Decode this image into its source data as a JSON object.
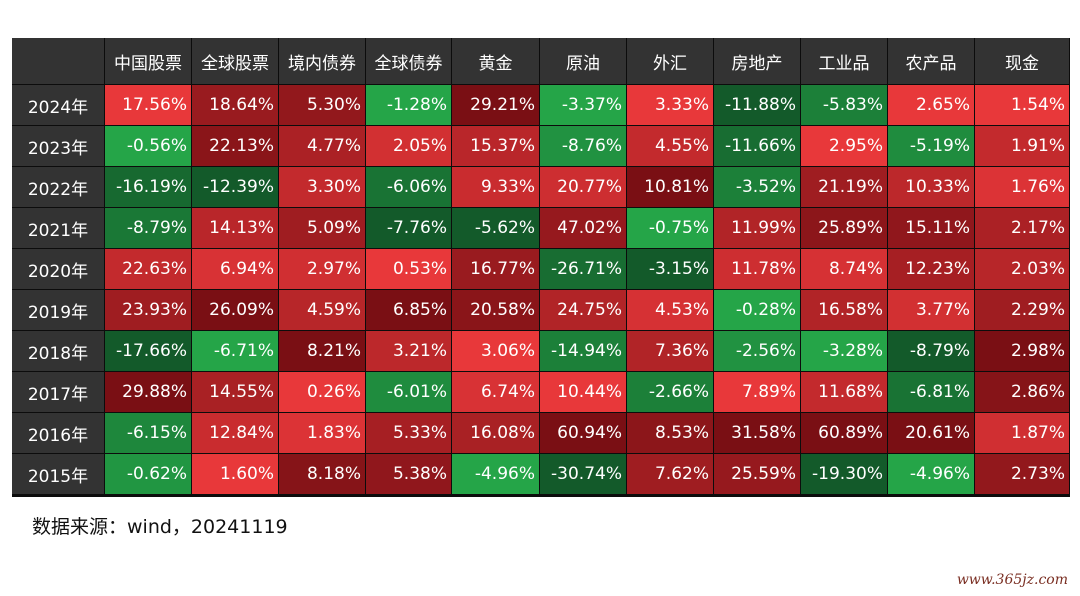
{
  "chart_data": {
    "type": "heatmap",
    "columns": [
      "中国股票",
      "全球股票",
      "境内债券",
      "全球债券",
      "黄金",
      "原油",
      "外汇",
      "房地产",
      "工业品",
      "农产品",
      "现金"
    ],
    "rows": [
      {
        "year": "2024年",
        "values": [
          "17.56%",
          "18.64%",
          "5.30%",
          "-1.28%",
          "29.21%",
          "-3.37%",
          "3.33%",
          "-11.88%",
          "-5.83%",
          "2.65%",
          "1.54%"
        ]
      },
      {
        "year": "2023年",
        "values": [
          "-0.56%",
          "22.13%",
          "4.77%",
          "2.05%",
          "15.37%",
          "-8.76%",
          "4.55%",
          "-11.66%",
          "2.95%",
          "-5.19%",
          "1.91%"
        ]
      },
      {
        "year": "2022年",
        "values": [
          "-16.19%",
          "-12.39%",
          "3.30%",
          "-6.06%",
          "9.33%",
          "20.77%",
          "10.81%",
          "-3.52%",
          "21.19%",
          "10.33%",
          "1.76%"
        ]
      },
      {
        "year": "2021年",
        "values": [
          "-8.79%",
          "14.13%",
          "5.09%",
          "-7.76%",
          "-5.62%",
          "47.02%",
          "-0.75%",
          "11.99%",
          "25.89%",
          "15.11%",
          "2.17%"
        ]
      },
      {
        "year": "2020年",
        "values": [
          "22.63%",
          "6.94%",
          "2.97%",
          "0.53%",
          "16.77%",
          "-26.71%",
          "-3.15%",
          "11.78%",
          "8.74%",
          "12.23%",
          "2.03%"
        ]
      },
      {
        "year": "2019年",
        "values": [
          "23.93%",
          "26.09%",
          "4.59%",
          "6.85%",
          "20.58%",
          "24.75%",
          "4.53%",
          "-0.28%",
          "16.58%",
          "3.77%",
          "2.29%"
        ]
      },
      {
        "year": "2018年",
        "values": [
          "-17.66%",
          "-6.71%",
          "8.21%",
          "3.21%",
          "3.06%",
          "-14.94%",
          "7.36%",
          "-2.56%",
          "-3.28%",
          "-8.79%",
          "2.98%"
        ]
      },
      {
        "year": "2017年",
        "values": [
          "29.88%",
          "14.55%",
          "0.26%",
          "-6.01%",
          "6.74%",
          "10.44%",
          "-2.66%",
          "7.89%",
          "11.68%",
          "-6.81%",
          "2.86%"
        ]
      },
      {
        "year": "2016年",
        "values": [
          "-6.15%",
          "12.84%",
          "1.83%",
          "5.33%",
          "16.08%",
          "60.94%",
          "8.53%",
          "31.58%",
          "60.89%",
          "20.61%",
          "1.87%"
        ]
      },
      {
        "year": "2015年",
        "values": [
          "-0.62%",
          "1.60%",
          "8.18%",
          "5.38%",
          "-4.96%",
          "-30.74%",
          "7.62%",
          "25.59%",
          "-19.30%",
          "-4.96%",
          "2.73%"
        ]
      }
    ],
    "color_scale": {
      "positive_light": "#e8383a",
      "positive_dark": "#7a0f14",
      "negative_light": "#25a548",
      "negative_dark": "#135a2a"
    }
  },
  "source_note": "数据来源：wind，20241119",
  "watermark": "www.365jz.com"
}
